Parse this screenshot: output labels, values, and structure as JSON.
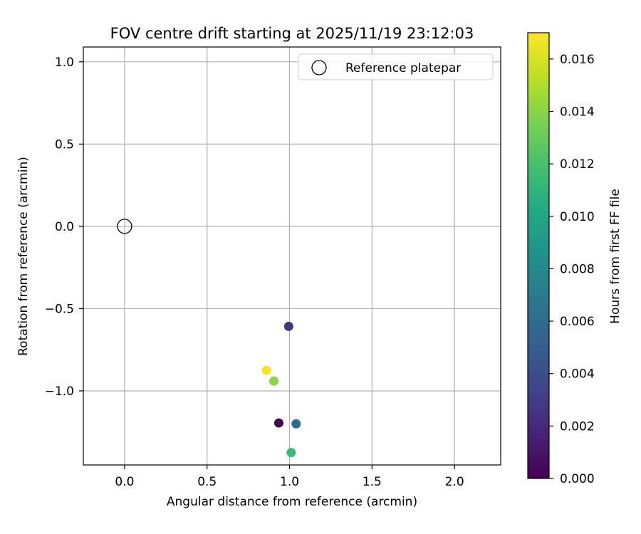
{
  "chart_data": {
    "type": "scatter",
    "title": "FOV centre drift starting at 2025/11/19 23:12:03",
    "xlabel": "Angular distance from reference (arcmin)",
    "ylabel": "Rotation from reference (arcmin)",
    "xlim": [
      -0.25,
      2.28
    ],
    "ylim": [
      -1.45,
      1.09
    ],
    "xticks": [
      0.0,
      0.5,
      1.0,
      1.5,
      2.0
    ],
    "xtick_labels": [
      "0.0",
      "0.5",
      "1.0",
      "1.5",
      "2.0"
    ],
    "yticks": [
      -1.0,
      -0.5,
      0.0,
      0.5,
      1.0
    ],
    "ytick_labels": [
      "−1.0",
      "−0.5",
      "0.0",
      "0.5",
      "1.0"
    ],
    "grid": true,
    "legend": {
      "position": "top-right",
      "entries": [
        "Reference platepar"
      ]
    },
    "reference_point": {
      "x": 0.0,
      "y": 0.0,
      "label": "Reference platepar",
      "marker": "open-circle"
    },
    "points": [
      {
        "x": 0.935,
        "y": -1.195,
        "hours": 0.0
      },
      {
        "x": 0.995,
        "y": -0.608,
        "hours": 0.0025
      },
      {
        "x": 1.04,
        "y": -1.2,
        "hours": 0.006
      },
      {
        "x": 1.01,
        "y": -1.375,
        "hours": 0.0115
      },
      {
        "x": 0.905,
        "y": -0.94,
        "hours": 0.014
      },
      {
        "x": 0.86,
        "y": -0.875,
        "hours": 0.0168
      }
    ],
    "colorbar": {
      "label": "Hours from first FF file",
      "colormap": "viridis",
      "range": [
        0.0,
        0.017
      ],
      "ticks": [
        0.0,
        0.002,
        0.004,
        0.006,
        0.008,
        0.01,
        0.012,
        0.014,
        0.016
      ],
      "tick_labels": [
        "0.000",
        "0.002",
        "0.004",
        "0.006",
        "0.008",
        "0.010",
        "0.012",
        "0.014",
        "0.016"
      ]
    }
  },
  "colors": {
    "grid": "#b0b0b0",
    "axes": "#000000",
    "legend_border": "#cccccc",
    "viridis": [
      "#440154",
      "#482475",
      "#414487",
      "#355f8d",
      "#2a788e",
      "#21918c",
      "#22a884",
      "#44bf70",
      "#7ad151",
      "#bddf26",
      "#fde725"
    ]
  }
}
